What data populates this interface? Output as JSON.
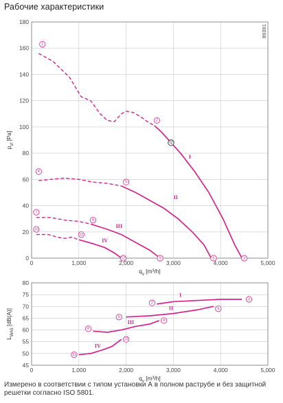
{
  "page": {
    "title": "Рабочие характеристики",
    "footnote": "Измерено в соответствии с типом установки А в полном раструбе и без защитной решетки согласно ISO 5801."
  },
  "colors": {
    "curve": "#d0258c",
    "grid": "#c8c8c8",
    "text": "#444444"
  },
  "chart_data": [
    {
      "type": "line",
      "side_code": "89391",
      "ylabel": "psf [Pa]",
      "xlabel": "qv [m³/h]",
      "xlim": [
        0,
        5000
      ],
      "ylim": [
        0,
        180
      ],
      "x_ticks": [
        "0",
        "1,000",
        "2,000",
        "3,000",
        "4,000",
        "5,000"
      ],
      "y_ticks": [
        "0",
        "20",
        "40",
        "60",
        "80",
        "100",
        "120",
        "140",
        "160",
        "180"
      ],
      "grid": true,
      "series": [
        {
          "name": "I",
          "dashed": [
            [
              150,
              156
            ],
            [
              450,
              150
            ],
            [
              800,
              138
            ],
            [
              1050,
              123
            ],
            [
              1250,
              120
            ],
            [
              1450,
              110
            ],
            [
              1600,
              105
            ],
            [
              1750,
              104
            ],
            [
              1900,
              110
            ],
            [
              2000,
              112
            ],
            [
              2150,
              111
            ],
            [
              2300,
              108
            ],
            [
              2450,
              104
            ],
            [
              2600,
              101
            ]
          ],
          "solid": [
            [
              2600,
              101
            ],
            [
              2750,
              96
            ],
            [
              2950,
              88
            ],
            [
              3150,
              80
            ],
            [
              3450,
              66
            ],
            [
              3750,
              50
            ],
            [
              4050,
              30
            ],
            [
              4300,
              10
            ],
            [
              4450,
              0
            ]
          ]
        },
        {
          "name": "II",
          "dashed": [
            [
              150,
              59
            ],
            [
              400,
              60
            ],
            [
              700,
              61
            ],
            [
              1000,
              60
            ],
            [
              1300,
              58
            ],
            [
              1600,
              57
            ],
            [
              1900,
              55
            ]
          ],
          "solid": [
            [
              1900,
              55
            ],
            [
              2200,
              50
            ],
            [
              2500,
              44
            ],
            [
              2800,
              38
            ],
            [
              3100,
              30
            ],
            [
              3400,
              20
            ],
            [
              3650,
              10
            ],
            [
              3800,
              0
            ]
          ]
        },
        {
          "name": "III",
          "dashed": [
            [
              100,
              31
            ],
            [
              400,
              31
            ],
            [
              700,
              29
            ],
            [
              1000,
              28
            ],
            [
              1250,
              26
            ]
          ],
          "solid": [
            [
              1250,
              26
            ],
            [
              1600,
              22
            ],
            [
              1900,
              18
            ],
            [
              2200,
              12
            ],
            [
              2500,
              6
            ],
            [
              2720,
              0
            ]
          ]
        },
        {
          "name": "IV",
          "dashed": [
            [
              100,
              18
            ],
            [
              350,
              18
            ],
            [
              550,
              16
            ],
            [
              700,
              15
            ],
            [
              850,
              16
            ],
            [
              1000,
              14
            ]
          ],
          "solid": [
            [
              1000,
              14
            ],
            [
              1300,
              11
            ],
            [
              1550,
              8
            ],
            [
              1750,
              4
            ],
            [
              1900,
              0
            ]
          ]
        }
      ],
      "points": [
        {
          "n": "1",
          "x": 230,
          "y": 163
        },
        {
          "n": "2",
          "x": 2650,
          "y": 105
        },
        {
          "n": "3",
          "x": 4500,
          "y": 0
        },
        {
          "n": "4",
          "x": 150,
          "y": 66
        },
        {
          "n": "5",
          "x": 2000,
          "y": 58
        },
        {
          "n": "6",
          "x": 3850,
          "y": 0
        },
        {
          "n": "7",
          "x": 100,
          "y": 35
        },
        {
          "n": "8",
          "x": 1300,
          "y": 29
        },
        {
          "n": "9",
          "x": 2720,
          "y": 0
        },
        {
          "n": "10",
          "x": 100,
          "y": 22
        },
        {
          "n": "11",
          "x": 1050,
          "y": 18
        },
        {
          "n": "12",
          "x": 1940,
          "y": 0
        },
        {
          "n": "Q",
          "x": 2950,
          "y": 88
        }
      ],
      "curve_labels": [
        {
          "text": "I",
          "x": 3350,
          "y": 76
        },
        {
          "text": "II",
          "x": 3050,
          "y": 45
        },
        {
          "text": "III",
          "x": 1850,
          "y": 23
        },
        {
          "text": "IV",
          "x": 1550,
          "y": 12
        }
      ]
    },
    {
      "type": "line",
      "ylabel": "LWA5 [dB(A)]",
      "xlabel": "qv [m³/h]",
      "xlim": [
        0,
        5000
      ],
      "ylim": [
        45,
        80
      ],
      "x_ticks": [
        "0",
        "1,000",
        "2,000",
        "3,000",
        "4,000",
        "5,000"
      ],
      "y_ticks": [
        "45",
        "50",
        "55",
        "60",
        "65",
        "70",
        "75",
        "80"
      ],
      "grid": true,
      "series": [
        {
          "name": "I",
          "solid": [
            [
              2650,
              71
            ],
            [
              3000,
              72
            ],
            [
              3500,
              72.5
            ],
            [
              4000,
              73
            ],
            [
              4450,
              73
            ]
          ]
        },
        {
          "name": "II",
          "solid": [
            [
              2000,
              65.5
            ],
            [
              2500,
              66
            ],
            [
              3000,
              67
            ],
            [
              3500,
              68.5
            ],
            [
              3850,
              70
            ]
          ]
        },
        {
          "name": "III",
          "solid": [
            [
              1300,
              59.5
            ],
            [
              1600,
              59
            ],
            [
              1900,
              60
            ],
            [
              2200,
              61.5
            ],
            [
              2500,
              62.5
            ],
            [
              2700,
              64
            ]
          ]
        },
        {
          "name": "IV",
          "solid": [
            [
              1000,
              49.5
            ],
            [
              1250,
              50
            ],
            [
              1500,
              51.5
            ],
            [
              1700,
              53
            ],
            [
              1900,
              56
            ]
          ]
        }
      ],
      "points": [
        {
          "n": "2",
          "x": 2550,
          "y": 71.5
        },
        {
          "n": "3",
          "x": 4600,
          "y": 73
        },
        {
          "n": "5",
          "x": 1850,
          "y": 65.5
        },
        {
          "n": "6",
          "x": 3950,
          "y": 69
        },
        {
          "n": "8",
          "x": 1200,
          "y": 60.5
        },
        {
          "n": "9",
          "x": 2800,
          "y": 64
        },
        {
          "n": "11",
          "x": 900,
          "y": 49.5
        },
        {
          "n": "12",
          "x": 2000,
          "y": 56
        }
      ],
      "curve_labels": [
        {
          "text": "I",
          "x": 3150,
          "y": 74
        },
        {
          "text": "II",
          "x": 2950,
          "y": 68.5
        },
        {
          "text": "III",
          "x": 2100,
          "y": 62.5
        },
        {
          "text": "IV",
          "x": 1400,
          "y": 52.5
        }
      ]
    }
  ]
}
